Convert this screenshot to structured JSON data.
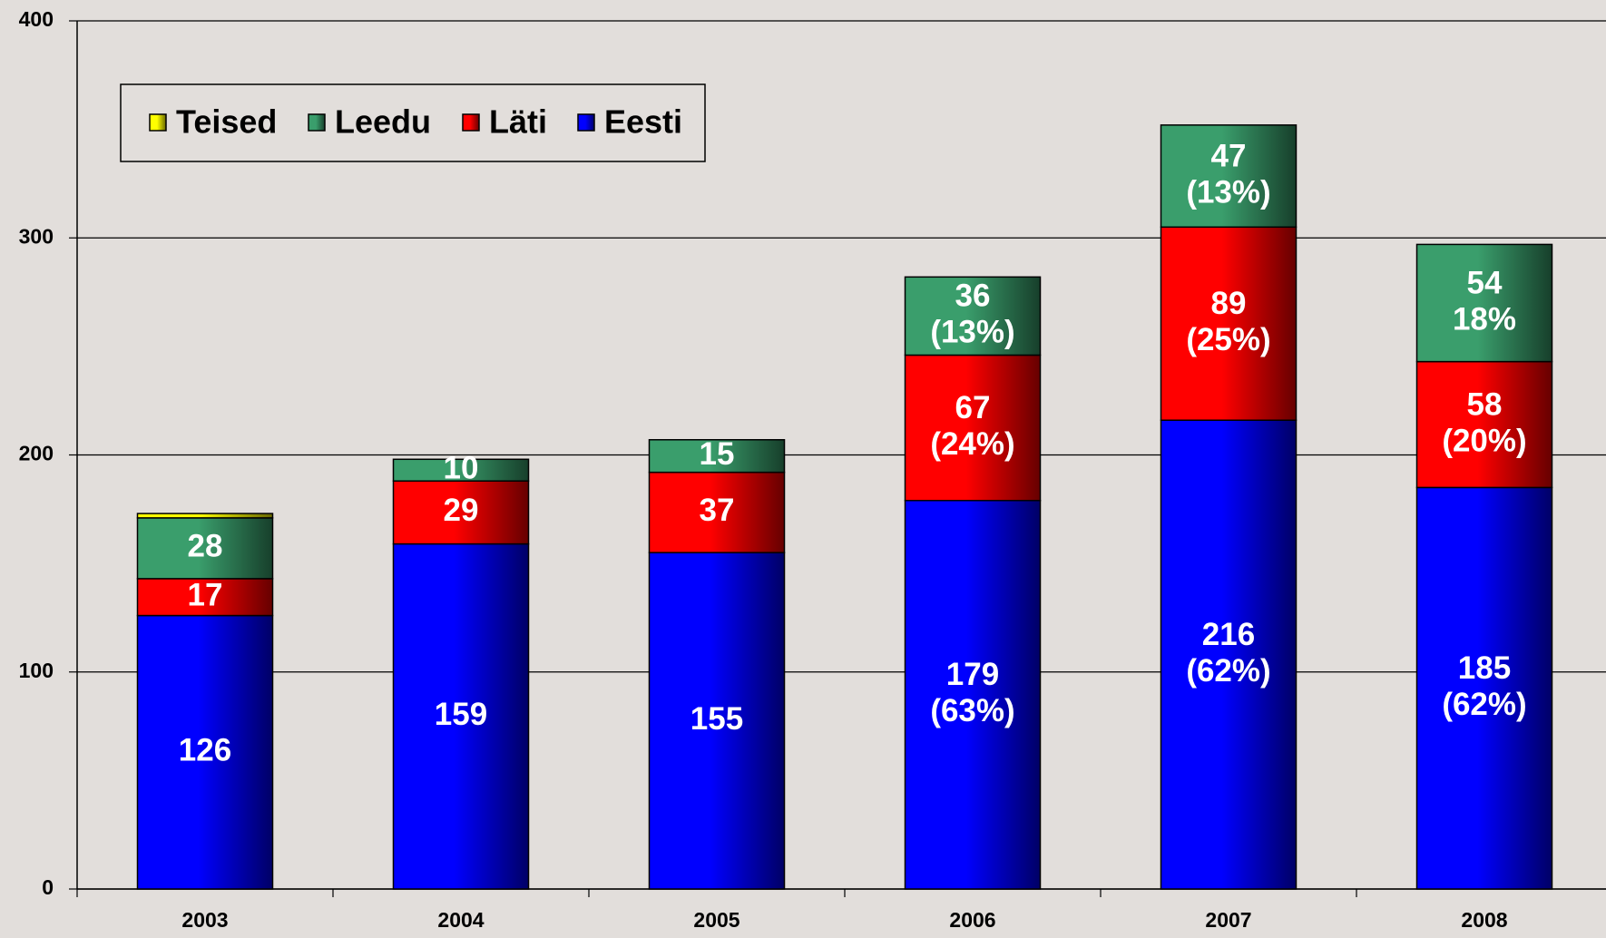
{
  "chart_data": {
    "type": "stacked-bar",
    "categories": [
      "2003",
      "2004",
      "2005",
      "2006",
      "2007",
      "2008"
    ],
    "series": [
      {
        "name": "Eesti",
        "color": "#0000ff",
        "values": [
          126,
          159,
          155,
          179,
          216,
          185
        ],
        "value_labels": [
          [
            "126"
          ],
          [
            "159"
          ],
          [
            "155"
          ],
          [
            "179",
            "(63%)"
          ],
          [
            "216",
            "(62%)"
          ],
          [
            "185",
            "(62%)"
          ]
        ]
      },
      {
        "name": "Läti",
        "color": "#ff0000",
        "values": [
          17,
          29,
          37,
          67,
          89,
          58
        ],
        "value_labels": [
          [
            "17"
          ],
          [
            "29"
          ],
          [
            "37"
          ],
          [
            "67",
            "(24%)"
          ],
          [
            "89",
            "(25%)"
          ],
          [
            "58",
            "(20%)"
          ]
        ]
      },
      {
        "name": "Leedu",
        "color": "#3a9e6c",
        "values": [
          28,
          10,
          15,
          36,
          47,
          54
        ],
        "value_labels": [
          [
            "28"
          ],
          [
            "10"
          ],
          [
            "15"
          ],
          [
            "36",
            "(13%)"
          ],
          [
            "47",
            "(13%)"
          ],
          [
            "54",
            "18%"
          ]
        ]
      },
      {
        "name": "Teised",
        "color": "#ffff00",
        "values": [
          2,
          null,
          null,
          null,
          null,
          null
        ]
      }
    ],
    "ylim": [
      0,
      400
    ],
    "yticks": [
      0,
      100,
      200,
      300,
      400
    ],
    "grid": true
  }
}
